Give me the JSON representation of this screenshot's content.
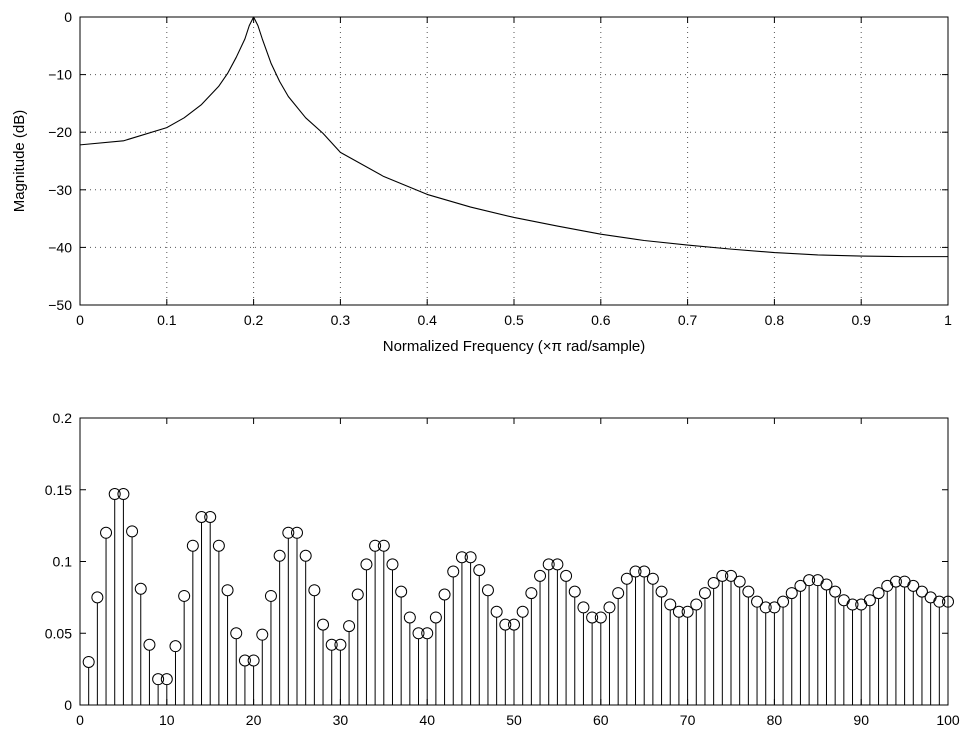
{
  "chart_data": [
    {
      "type": "line",
      "xlabel": "Normalized Frequency  (×π rad/sample)",
      "ylabel": "Magnitude (dB)",
      "xlim": [
        0,
        1
      ],
      "ylim": [
        -50,
        0
      ],
      "xticks": [
        0,
        0.1,
        0.2,
        0.3,
        0.4,
        0.5,
        0.6,
        0.7,
        0.8,
        0.9,
        1
      ],
      "yticks": [
        0,
        -10,
        -20,
        -30,
        -40,
        -50
      ],
      "xtick_labels": [
        "0",
        "0.1",
        "0.2",
        "0.3",
        "0.4",
        "0.5",
        "0.6",
        "0.7",
        "0.8",
        "0.9",
        "1"
      ],
      "ytick_labels": [
        "0",
        "−10",
        "−20",
        "−30",
        "−40",
        "−50"
      ],
      "grid": true,
      "series": [
        {
          "x": [
            0,
            0.05,
            0.1,
            0.12,
            0.14,
            0.16,
            0.17,
            0.18,
            0.19,
            0.195,
            0.2,
            0.205,
            0.21,
            0.22,
            0.23,
            0.24,
            0.26,
            0.28,
            0.3,
            0.35,
            0.4,
            0.45,
            0.5,
            0.55,
            0.6,
            0.65,
            0.7,
            0.75,
            0.8,
            0.85,
            0.9,
            0.95,
            1.0
          ],
          "y": [
            -22.2,
            -21.5,
            -19.2,
            -17.5,
            -15.2,
            -12.0,
            -9.8,
            -7.0,
            -3.8,
            -1.5,
            0,
            -1.5,
            -3.8,
            -8.0,
            -11.2,
            -13.8,
            -17.5,
            -20.2,
            -23.5,
            -27.7,
            -30.8,
            -33.0,
            -34.8,
            -36.3,
            -37.7,
            -38.8,
            -39.6,
            -40.3,
            -40.9,
            -41.3,
            -41.5,
            -41.6,
            -41.6
          ]
        }
      ]
    },
    {
      "type": "scatter",
      "xlim": [
        0,
        100
      ],
      "ylim": [
        0,
        0.2
      ],
      "xticks": [
        0,
        10,
        20,
        30,
        40,
        50,
        60,
        70,
        80,
        90,
        100
      ],
      "yticks": [
        0,
        0.05,
        0.1,
        0.15,
        0.2
      ],
      "xtick_labels": [
        "0",
        "10",
        "20",
        "30",
        "40",
        "50",
        "60",
        "70",
        "80",
        "90",
        "100"
      ],
      "ytick_labels": [
        "0",
        "0.05",
        "0.1",
        "0.15",
        "0.2"
      ],
      "grid": false,
      "series": [
        {
          "x": [
            1,
            2,
            3,
            4,
            5,
            6,
            7,
            8,
            9,
            10,
            11,
            12,
            13,
            14,
            15,
            16,
            17,
            18,
            19,
            20,
            21,
            22,
            23,
            24,
            25,
            26,
            27,
            28,
            29,
            30,
            31,
            32,
            33,
            34,
            35,
            36,
            37,
            38,
            39,
            40,
            41,
            42,
            43,
            44,
            45,
            46,
            47,
            48,
            49,
            50,
            51,
            52,
            53,
            54,
            55,
            56,
            57,
            58,
            59,
            60,
            61,
            62,
            63,
            64,
            65,
            66,
            67,
            68,
            69,
            70,
            71,
            72,
            73,
            74,
            75,
            76,
            77,
            78,
            79,
            80,
            81,
            82,
            83,
            84,
            85,
            86,
            87,
            88,
            89,
            90,
            91,
            92,
            93,
            94,
            95,
            96,
            97,
            98,
            99,
            100
          ],
          "y": [
            0.03,
            0.075,
            0.12,
            0.147,
            0.147,
            0.121,
            0.081,
            0.042,
            0.018,
            0.018,
            0.041,
            0.076,
            0.111,
            0.131,
            0.131,
            0.111,
            0.08,
            0.05,
            0.031,
            0.031,
            0.049,
            0.076,
            0.104,
            0.12,
            0.12,
            0.104,
            0.08,
            0.056,
            0.042,
            0.042,
            0.055,
            0.077,
            0.098,
            0.111,
            0.111,
            0.098,
            0.079,
            0.061,
            0.05,
            0.05,
            0.061,
            0.077,
            0.093,
            0.103,
            0.103,
            0.094,
            0.08,
            0.065,
            0.056,
            0.056,
            0.065,
            0.078,
            0.09,
            0.098,
            0.098,
            0.09,
            0.079,
            0.068,
            0.061,
            0.061,
            0.068,
            0.078,
            0.088,
            0.093,
            0.093,
            0.088,
            0.079,
            0.07,
            0.065,
            0.065,
            0.07,
            0.078,
            0.085,
            0.09,
            0.09,
            0.086,
            0.079,
            0.072,
            0.068,
            0.068,
            0.072,
            0.078,
            0.083,
            0.087,
            0.087,
            0.084,
            0.079,
            0.073,
            0.07,
            0.07,
            0.073,
            0.078,
            0.083,
            0.086,
            0.086,
            0.083,
            0.079,
            0.075,
            0.072,
            0.072
          ]
        }
      ]
    }
  ]
}
